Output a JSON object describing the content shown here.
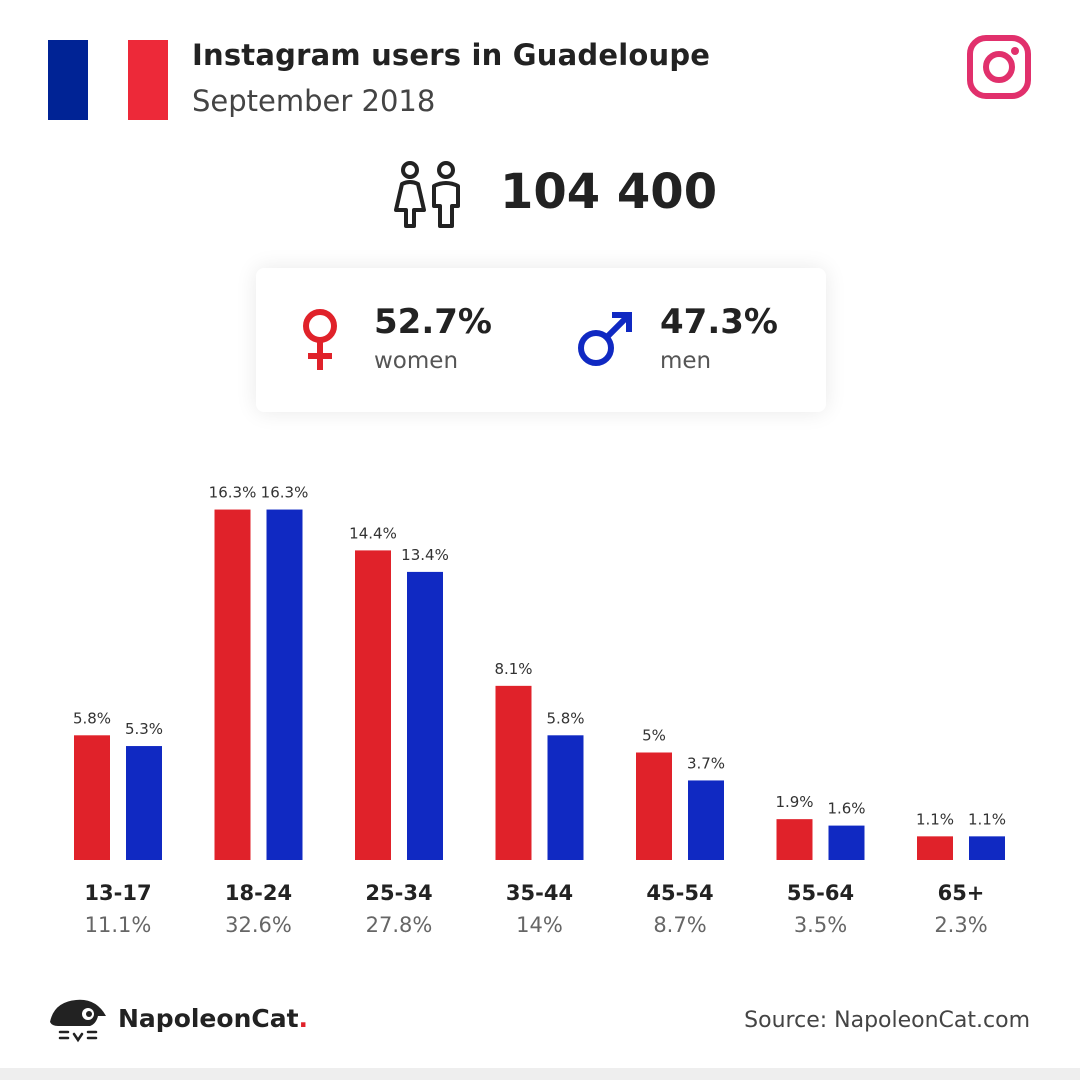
{
  "header": {
    "title": "Instagram users in Guadeloupe",
    "subtitle": "September 2018",
    "flag_colors": [
      "#002395",
      "#ffffff",
      "#ed2939"
    ],
    "icon": "instagram-icon",
    "icon_color": "#e1306c"
  },
  "summary": {
    "total": "104 400",
    "icon": "people-icon"
  },
  "gender": {
    "women": {
      "pct": "52.7%",
      "label": "women",
      "color": "#e0222a",
      "icon": "female-symbol-icon"
    },
    "men": {
      "pct": "47.3%",
      "label": "men",
      "color": "#1029c2",
      "icon": "male-symbol-icon"
    }
  },
  "chart_data": {
    "type": "bar",
    "categories": [
      "13-17",
      "18-24",
      "25-34",
      "35-44",
      "45-54",
      "55-64",
      "65+"
    ],
    "category_totals": [
      "11.1%",
      "32.6%",
      "27.8%",
      "14%",
      "8.7%",
      "3.5%",
      "2.3%"
    ],
    "series": [
      {
        "values": [
          5.8,
          16.3,
          14.4,
          8.1,
          5,
          1.9,
          1.1
        ],
        "labels": [
          "5.8%",
          "16.3%",
          "14.4%",
          "8.1%",
          "5%",
          "1.9%",
          "1.1%"
        ],
        "color": "#e0222a"
      },
      {
        "values": [
          5.3,
          16.3,
          13.4,
          5.8,
          3.7,
          1.6,
          1.1
        ],
        "labels": [
          "5.3%",
          "16.3%",
          "13.4%",
          "5.8%",
          "3.7%",
          "1.6%",
          "1.1%"
        ],
        "color": "#1029c2"
      }
    ],
    "grid": false
  },
  "footer": {
    "brand": "NapoleonCat",
    "brand_dot": ".",
    "source": "Source: NapoleonCat.com",
    "logo_icon": "napoleoncat-logo-icon"
  }
}
